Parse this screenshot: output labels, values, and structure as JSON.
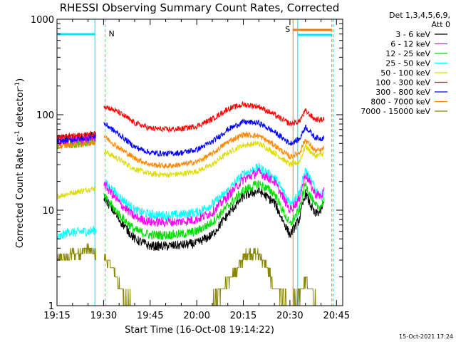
{
  "chart_data": {
    "type": "line",
    "title": "RHESSI Observing Summary Count Rates, Corrected",
    "xlabel": "Start Time (16-Oct-08 19:14:22)",
    "ylabel": "Corrected Count Rate (s⁻¹ detector⁻¹)",
    "ylabel_parts": {
      "main": "Corrected Count Rate (s",
      "sup1": "-1",
      "mid": " detector",
      "sup2": "-1",
      "end": ")"
    },
    "x_unit": "minutes after 19:15",
    "xlim": [
      0,
      92
    ],
    "ylim": [
      1,
      1000
    ],
    "y_scale": "log",
    "x_tick_labels": [
      "19:15",
      "19:30",
      "19:45",
      "20:00",
      "20:15",
      "20:30",
      "20:45"
    ],
    "x_tick_values": [
      0,
      15,
      30,
      45,
      60,
      75,
      90
    ],
    "y_tick_labels": [
      "1",
      "10",
      "100",
      "1000"
    ],
    "y_tick_values": [
      1,
      10,
      100,
      1000
    ],
    "legend": {
      "header": [
        "Det 1,3,4,5,6,9,",
        "Att 0"
      ],
      "placement": "right"
    },
    "footer": "15-Oct-2021 17:24",
    "annotations": {
      "night_label": "N",
      "saa_label": "S"
    },
    "data_gap": [
      12.5,
      15
    ],
    "series": [
      {
        "name": "3 - 6 keV",
        "color": "#000000",
        "x": [
          0,
          5,
          10,
          12.5,
          15,
          20,
          25,
          30,
          35,
          40,
          45,
          50,
          55,
          60,
          65,
          70,
          75,
          78,
          80,
          83,
          85,
          86
        ],
        "values": [
          55,
          56,
          58,
          60,
          14,
          8,
          5,
          4.2,
          4.2,
          4.3,
          4.5,
          5.5,
          9,
          14,
          16,
          12,
          5.5,
          8,
          15,
          9,
          10,
          12
        ]
      },
      {
        "name": "6 - 12 keV",
        "color": "#ff00ff",
        "x": [
          0,
          5,
          10,
          12.5,
          15,
          20,
          25,
          30,
          35,
          40,
          45,
          50,
          55,
          60,
          65,
          70,
          75,
          78,
          80,
          83,
          85,
          86
        ],
        "values": [
          52,
          54,
          56,
          58,
          19,
          12,
          8.5,
          7.5,
          7.5,
          7.6,
          8,
          9.5,
          14,
          21,
          25,
          20,
          10,
          13,
          24,
          15,
          14,
          16
        ]
      },
      {
        "name": "12 - 25 keV",
        "color": "#00dd00",
        "x": [
          0,
          5,
          10,
          12.5,
          15,
          20,
          25,
          30,
          35,
          40,
          45,
          50,
          55,
          60,
          65,
          70,
          75,
          78,
          80,
          83,
          85,
          86
        ],
        "values": [
          48,
          50,
          52,
          54,
          14,
          9,
          6.2,
          5.5,
          5.5,
          5.6,
          6,
          7.5,
          11,
          16,
          19,
          15,
          7,
          10,
          19,
          11,
          11,
          13
        ]
      },
      {
        "name": "25 - 50 keV",
        "color": "#00ffff",
        "x": [
          0,
          2,
          4,
          6,
          8,
          10,
          12.5,
          15,
          20,
          25,
          30,
          35,
          40,
          45,
          50,
          55,
          60,
          65,
          70,
          75,
          78,
          80,
          83,
          85,
          86
        ],
        "values": [
          5,
          5.5,
          6,
          5.8,
          6,
          6,
          6.2,
          20,
          14,
          10,
          9,
          8.8,
          9,
          9.5,
          11.5,
          16,
          24,
          28,
          22,
          12,
          15,
          26,
          17,
          14,
          15
        ]
      },
      {
        "name": "50 - 100 keV",
        "color": "#dddd00",
        "x": [
          0,
          4,
          8,
          12.5,
          15,
          20,
          25,
          30,
          35,
          40,
          45,
          50,
          55,
          60,
          65,
          70,
          75,
          78,
          80,
          83,
          85,
          86
        ],
        "values": [
          14,
          15,
          16,
          17,
          42,
          34,
          27,
          24,
          23.5,
          24,
          25.5,
          30,
          40,
          48,
          50,
          40,
          30,
          32,
          47,
          37,
          38,
          40
        ]
      },
      {
        "name": "100 - 300 keV",
        "color": "#ff0000",
        "x": [
          0,
          5,
          10,
          12.5,
          15,
          20,
          25,
          30,
          35,
          40,
          45,
          50,
          55,
          60,
          65,
          70,
          75,
          78,
          80,
          83,
          85,
          86
        ],
        "values": [
          58,
          60,
          62,
          64,
          125,
          105,
          82,
          72,
          70,
          71,
          76,
          90,
          115,
          128,
          122,
          100,
          80,
          85,
          110,
          90,
          88,
          92
        ]
      },
      {
        "name": "300 - 800 keV",
        "color": "#0000ff",
        "x": [
          0,
          5,
          10,
          12.5,
          15,
          20,
          25,
          30,
          35,
          40,
          45,
          50,
          55,
          60,
          65,
          70,
          75,
          78,
          80,
          83,
          85,
          86
        ],
        "values": [
          52,
          55,
          57,
          60,
          82,
          62,
          46,
          40,
          39,
          40,
          43,
          52,
          70,
          84,
          82,
          66,
          50,
          55,
          75,
          58,
          56,
          60
        ]
      },
      {
        "name": "800 - 7000 keV",
        "color": "#ff8800",
        "x": [
          0,
          5,
          10,
          12.5,
          15,
          20,
          25,
          30,
          35,
          40,
          45,
          50,
          55,
          60,
          65,
          70,
          75,
          78,
          80,
          83,
          85,
          86
        ],
        "values": [
          46,
          48,
          50,
          52,
          60,
          45,
          35,
          30,
          29,
          30,
          32,
          39,
          52,
          62,
          60,
          48,
          36,
          40,
          55,
          42,
          42,
          45
        ]
      },
      {
        "name": "7000 - 15000 keV",
        "color": "#888800",
        "x": [
          0,
          3,
          5,
          8,
          10,
          12.5,
          15,
          18,
          20,
          22,
          25,
          30,
          35,
          40,
          45,
          48,
          50,
          52,
          55,
          58,
          60,
          62,
          65,
          68,
          70,
          75,
          78,
          80,
          83,
          85,
          86
        ],
        "values": [
          3,
          3.2,
          3.5,
          3.6,
          4,
          3.4,
          3.2,
          2.5,
          1.7,
          1.2,
          1.0,
          1.0,
          1.0,
          1.0,
          1.0,
          1.0,
          1.1,
          1.3,
          1.8,
          2.4,
          3.2,
          3.6,
          3.4,
          2.4,
          1.5,
          1.0,
          1.3,
          1.8,
          1.2,
          1.0,
          1.0
        ]
      }
    ]
  }
}
